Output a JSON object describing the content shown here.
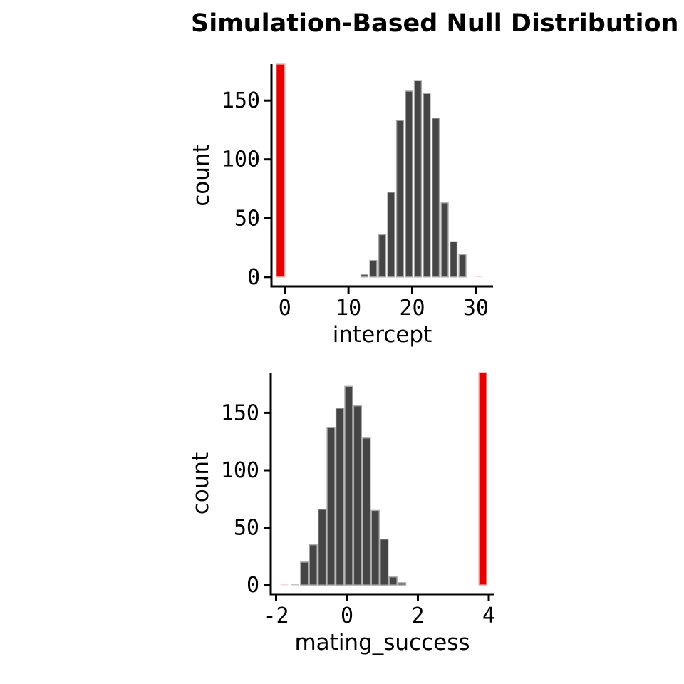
{
  "header": {
    "title": "Simulation-Based Null Distribution"
  },
  "colors": {
    "background": "#ffffff",
    "title_text": "#000000",
    "axis": "#000000",
    "bar_fill": "#454545",
    "bar_stroke": "#a8a8a8",
    "observed_fill": "#e60000",
    "observed_stroke": "#f3aca7",
    "pink_fill": "#fcd3da",
    "pale_fill": "#c6c6c6"
  },
  "chart_data": [
    {
      "type": "bar",
      "variant": "histogram",
      "title": "",
      "xlabel": "intercept",
      "ylabel": "count",
      "x_ticks": [
        0,
        10,
        20,
        30
      ],
      "y_ticks": [
        0,
        50,
        100,
        150
      ],
      "xlim": [
        -2.1,
        32.7
      ],
      "ylim": [
        -8,
        181
      ],
      "grid": false,
      "legend": false,
      "bin_width": 1.1,
      "bars": [
        {
          "x": 12.5,
          "count": 2
        },
        {
          "x": 13.9,
          "count": 14
        },
        {
          "x": 15.3,
          "count": 36
        },
        {
          "x": 16.7,
          "count": 72
        },
        {
          "x": 18.1,
          "count": 133
        },
        {
          "x": 19.5,
          "count": 158
        },
        {
          "x": 20.9,
          "count": 167
        },
        {
          "x": 22.3,
          "count": 156
        },
        {
          "x": 23.7,
          "count": 135
        },
        {
          "x": 25.1,
          "count": 63
        },
        {
          "x": 26.5,
          "count": 30
        },
        {
          "x": 27.9,
          "count": 19
        }
      ],
      "outlier_bars": [
        {
          "x": 30.5,
          "count": 1,
          "style": "pink"
        }
      ],
      "observed_stat": {
        "x": -0.67,
        "bar_width": 1.35,
        "full_height": true
      }
    },
    {
      "type": "bar",
      "variant": "histogram",
      "title": "",
      "xlabel": "mating_success",
      "ylabel": "count",
      "x_ticks": [
        -2,
        0,
        2,
        4
      ],
      "y_ticks": [
        0,
        50,
        100,
        150
      ],
      "xlim": [
        -2.15,
        4.14
      ],
      "ylim": [
        -8,
        185
      ],
      "grid": false,
      "legend": false,
      "bin_width": 0.22,
      "bars": [
        {
          "x": -1.2,
          "count": 20
        },
        {
          "x": -0.95,
          "count": 35
        },
        {
          "x": -0.7,
          "count": 66
        },
        {
          "x": -0.45,
          "count": 137
        },
        {
          "x": -0.2,
          "count": 154
        },
        {
          "x": 0.05,
          "count": 173
        },
        {
          "x": 0.3,
          "count": 156
        },
        {
          "x": 0.55,
          "count": 128
        },
        {
          "x": 0.8,
          "count": 65
        },
        {
          "x": 1.05,
          "count": 40
        },
        {
          "x": 1.3,
          "count": 7
        },
        {
          "x": 1.55,
          "count": 2
        }
      ],
      "outlier_bars": [
        {
          "x": -1.77,
          "count": 1,
          "style": "pink"
        },
        {
          "x": -1.47,
          "count": 1,
          "style": "pale"
        }
      ],
      "observed_stat": {
        "x": 3.83,
        "bar_width": 0.22,
        "full_height": true
      }
    }
  ]
}
